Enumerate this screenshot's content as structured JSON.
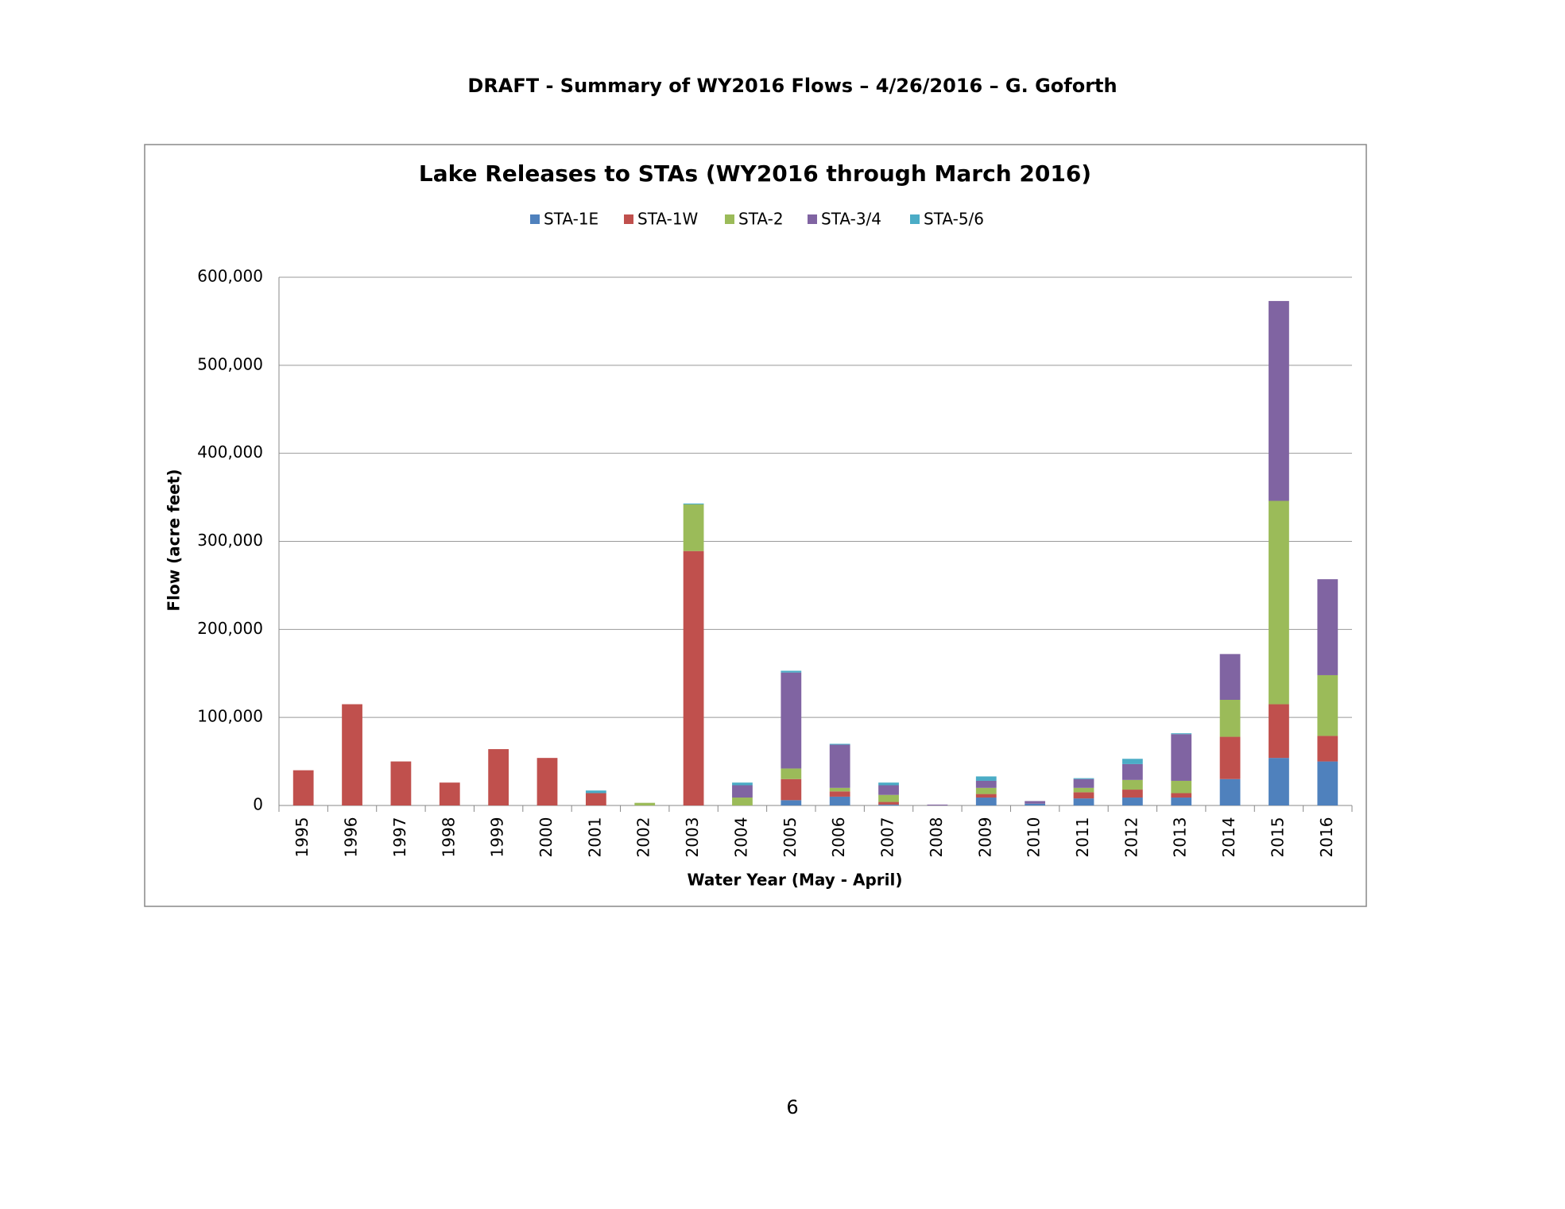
{
  "header": {
    "title": "DRAFT - Summary of WY2016 Flows – 4/26/2016 – G. Goforth"
  },
  "page_number": 6,
  "chart_data": {
    "type": "bar",
    "stacked": true,
    "title": "Lake Releases to STAs (WY2016 through March 2016)",
    "x_label": "Water Year (May - April)",
    "y_label": "Flow (acre feet)",
    "categories": [
      "1995",
      "1996",
      "1997",
      "1998",
      "1999",
      "2000",
      "2001",
      "2002",
      "2003",
      "2004",
      "2005",
      "2006",
      "2007",
      "2008",
      "2009",
      "2010",
      "2011",
      "2012",
      "2013",
      "2014",
      "2015",
      "2016"
    ],
    "series": [
      {
        "name": "STA-1E",
        "color": "#4f81bd",
        "values": [
          0,
          0,
          0,
          0,
          0,
          0,
          0,
          0,
          0,
          0,
          6000,
          10000,
          1000,
          0,
          9000,
          2000,
          8000,
          9000,
          9000,
          30000,
          54000,
          50000
        ]
      },
      {
        "name": "STA-1W",
        "color": "#c0504d",
        "values": [
          40000,
          115000,
          50000,
          26000,
          64000,
          54000,
          14000,
          0,
          289000,
          0,
          24000,
          6000,
          3000,
          0,
          4000,
          0,
          7000,
          9000,
          5000,
          48000,
          61000,
          29000
        ]
      },
      {
        "name": "STA-2",
        "color": "#9bbb59",
        "values": [
          0,
          0,
          0,
          0,
          0,
          0,
          0,
          3000,
          53000,
          9000,
          12000,
          4000,
          8000,
          0,
          7000,
          0,
          5000,
          11000,
          14000,
          42000,
          231000,
          69000
        ]
      },
      {
        "name": "STA-3/4",
        "color": "#8064a2",
        "values": [
          0,
          0,
          0,
          0,
          0,
          0,
          0,
          0,
          0,
          14000,
          109000,
          49000,
          11000,
          1000,
          8000,
          3000,
          10000,
          18000,
          53000,
          52000,
          227000,
          109000
        ]
      },
      {
        "name": "STA-5/6",
        "color": "#4bacc6",
        "values": [
          0,
          0,
          0,
          0,
          0,
          0,
          3000,
          0,
          1000,
          3000,
          2000,
          1000,
          3000,
          0,
          5000,
          0,
          1000,
          6000,
          1000,
          0,
          0,
          0
        ]
      }
    ],
    "ylim": [
      0,
      600000
    ],
    "yticks": [
      0,
      {
        "value": 100000,
        "label": "100,000"
      },
      {
        "value": 200000,
        "label": "200,000"
      },
      {
        "value": 300000,
        "label": "300,000"
      },
      {
        "value": 400000,
        "label": "400,000"
      },
      {
        "value": 500000,
        "label": "500,000"
      },
      {
        "value": 600000,
        "label": "600,000"
      }
    ],
    "grid": true,
    "legend": "top"
  }
}
